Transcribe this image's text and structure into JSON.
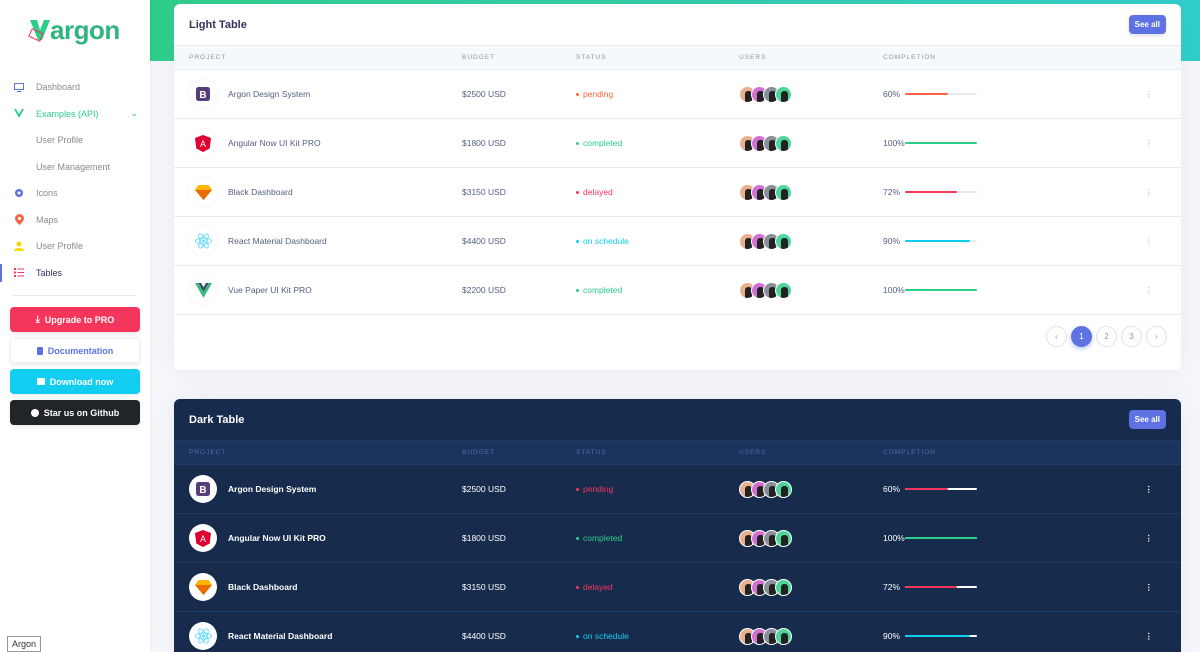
{
  "sidebar": {
    "brand": "argon",
    "items": [
      {
        "label": "Dashboard",
        "icon": "monitor-icon",
        "color": "#5e72e4"
      },
      {
        "label": "Examples (API)",
        "icon": "vue-icon",
        "color": "#2dce89",
        "expanded": true
      },
      {
        "label": "User Profile",
        "sub": true
      },
      {
        "label": "User Management",
        "sub": true
      },
      {
        "label": "Icons",
        "icon": "planet-icon",
        "color": "#5e72e4"
      },
      {
        "label": "Maps",
        "icon": "pin-icon",
        "color": "#fb6340"
      },
      {
        "label": "User Profile",
        "icon": "user-icon",
        "color": "#ffd600"
      },
      {
        "label": "Tables",
        "icon": "list-icon",
        "color": "#f5365c",
        "active": true
      }
    ],
    "buttons": {
      "upgrade": "Upgrade to PRO",
      "docs": "Documentation",
      "download": "Download now",
      "github": "Star us on Github"
    },
    "tooltip": "Argon"
  },
  "light_table": {
    "title": "Light Table",
    "see_all": "See all",
    "columns": [
      "PROJECT",
      "BUDGET",
      "STATUS",
      "USERS",
      "COMPLETION"
    ],
    "rows": [
      {
        "project": "Argon Design System",
        "logo": "bootstrap",
        "budget": "$2500 USD",
        "status": "pending",
        "status_color": "#fb6340",
        "completion": "60%",
        "value": 60,
        "bar_color": "#fb6340"
      },
      {
        "project": "Angular Now UI Kit PRO",
        "logo": "angular",
        "budget": "$1800 USD",
        "status": "completed",
        "status_color": "#2dce89",
        "completion": "100%",
        "value": 100,
        "bar_color": "#2dce89"
      },
      {
        "project": "Black Dashboard",
        "logo": "sketch",
        "budget": "$3150 USD",
        "status": "delayed",
        "status_color": "#f5365c",
        "completion": "72%",
        "value": 72,
        "bar_color": "#f5365c"
      },
      {
        "project": "React Material Dashboard",
        "logo": "react",
        "budget": "$4400 USD",
        "status": "on schedule",
        "status_color": "#11cdef",
        "completion": "90%",
        "value": 90,
        "bar_color": "#11cdef"
      },
      {
        "project": "Vue Paper UI Kit PRO",
        "logo": "vue",
        "budget": "$2200 USD",
        "status": "completed",
        "status_color": "#2dce89",
        "completion": "100%",
        "value": 100,
        "bar_color": "#2dce89"
      }
    ],
    "pagination": {
      "prev": "‹",
      "pages": [
        "1",
        "2",
        "3"
      ],
      "active": "1",
      "next": "›"
    }
  },
  "dark_table": {
    "title": "Dark Table",
    "see_all": "See all",
    "columns": [
      "PROJECT",
      "BUDGET",
      "STATUS",
      "USERS",
      "COMPLETION"
    ],
    "rows": [
      {
        "project": "Argon Design System",
        "logo": "bootstrap",
        "budget": "$2500 USD",
        "status": "pending",
        "status_color": "#f5365c",
        "completion": "60%",
        "value": 60,
        "bar_color": "#f5365c"
      },
      {
        "project": "Angular Now UI Kit PRO",
        "logo": "angular",
        "budget": "$1800 USD",
        "status": "completed",
        "status_color": "#2dce89",
        "completion": "100%",
        "value": 100,
        "bar_color": "#2dce89"
      },
      {
        "project": "Black Dashboard",
        "logo": "sketch",
        "budget": "$3150 USD",
        "status": "delayed",
        "status_color": "#f5365c",
        "completion": "72%",
        "value": 72,
        "bar_color": "#f5365c"
      },
      {
        "project": "React Material Dashboard",
        "logo": "react",
        "budget": "$4400 USD",
        "status": "on schedule",
        "status_color": "#11cdef",
        "completion": "90%",
        "value": 90,
        "bar_color": "#11cdef"
      }
    ]
  },
  "colors": {
    "primary": "#5e72e4",
    "success": "#2dce89",
    "danger": "#f5365c",
    "info": "#11cdef",
    "warning": "#fb6340",
    "dark_bg": "#172b4d"
  }
}
